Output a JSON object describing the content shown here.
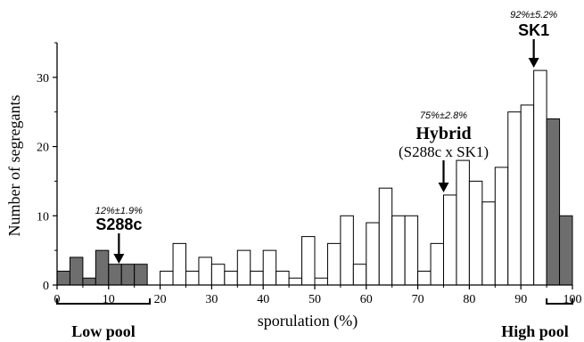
{
  "chart_data": {
    "type": "bar",
    "bin_width": 2.5,
    "bin_starts": [
      0,
      2.5,
      5,
      7.5,
      10,
      12.5,
      15,
      17.5,
      20,
      22.5,
      25,
      27.5,
      30,
      32.5,
      35,
      37.5,
      40,
      42.5,
      45,
      47.5,
      50,
      52.5,
      55,
      57.5,
      60,
      62.5,
      65,
      67.5,
      70,
      72.5,
      75,
      77.5,
      80,
      82.5,
      85,
      87.5,
      90,
      92.5,
      95,
      97.5
    ],
    "values": [
      2,
      4,
      1,
      5,
      3,
      3,
      3,
      0,
      2,
      6,
      2,
      4,
      3,
      2,
      5,
      2,
      5,
      2,
      1,
      7,
      1,
      6,
      10,
      3,
      9,
      14,
      10,
      10,
      2,
      6,
      13,
      18,
      15,
      12,
      17,
      25,
      26,
      31,
      24,
      10
    ],
    "highlighted": [
      "low",
      "low",
      "low",
      "low",
      "low",
      "low",
      "low",
      "none",
      "none",
      "none",
      "none",
      "none",
      "none",
      "none",
      "none",
      "none",
      "none",
      "none",
      "none",
      "none",
      "none",
      "none",
      "none",
      "none",
      "none",
      "none",
      "none",
      "none",
      "none",
      "none",
      "none",
      "none",
      "none",
      "none",
      "none",
      "none",
      "none",
      "none",
      "high",
      "high"
    ],
    "xlabel": "sporulation (%)",
    "ylabel": "Number of segregants",
    "xlim": [
      0,
      100
    ],
    "ylim": [
      0,
      35
    ],
    "xticks": [
      "0",
      "10",
      "20",
      "30",
      "40",
      "50",
      "60",
      "70",
      "80",
      "90",
      "100"
    ],
    "yticks": [
      "0",
      "10",
      "20",
      "30"
    ],
    "colors": {
      "highlight": "#6e6e6e",
      "normal": "#ffffff",
      "stroke": "#000000"
    },
    "annotations": [
      {
        "stat": "12%±1.9%",
        "label": "S288c",
        "sublabel": "",
        "x": 12
      },
      {
        "stat": "75%±2.8%",
        "label": "Hybrid",
        "sublabel": "(S288c x SK1)",
        "x": 75
      },
      {
        "stat": "92%±5.2%",
        "label": "SK1",
        "sublabel": "",
        "x": 92.5
      }
    ],
    "pools": [
      {
        "label": "Low pool",
        "from": 0,
        "to": 18
      },
      {
        "label": "High pool",
        "from": 95,
        "to": 100
      }
    ]
  }
}
